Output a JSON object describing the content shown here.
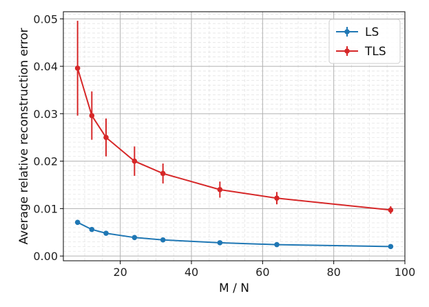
{
  "chart_data": {
    "type": "line",
    "title": "",
    "xlabel": "M / N",
    "ylabel": "Average relative reconstruction error",
    "xlim": [
      4,
      100
    ],
    "ylim": [
      -0.001,
      0.0515
    ],
    "x_ticks": [
      20,
      40,
      60,
      80,
      100
    ],
    "x_tick_labels": [
      "20",
      "40",
      "60",
      "80",
      "100"
    ],
    "y_ticks": [
      0.0,
      0.01,
      0.02,
      0.03,
      0.04,
      0.05
    ],
    "y_tick_labels": [
      "0.00",
      "0.01",
      "0.02",
      "0.03",
      "0.04",
      "0.05"
    ],
    "grid": true,
    "minor_grid": true,
    "legend_position": "top-right",
    "x": [
      8,
      12,
      16,
      24,
      32,
      48,
      64,
      96
    ],
    "series": [
      {
        "name": "LS",
        "color": "#1f77b4",
        "values": [
          0.0071,
          0.0056,
          0.0048,
          0.0039,
          0.0034,
          0.0028,
          0.0024,
          0.002
        ],
        "errors": [
          0.0003,
          0.0003,
          0.0002,
          0.0002,
          0.0002,
          0.0002,
          0.0001,
          0.0001
        ]
      },
      {
        "name": "TLS",
        "color": "#d62728",
        "values": [
          0.0396,
          0.0296,
          0.025,
          0.02,
          0.0174,
          0.014,
          0.0122,
          0.0097
        ],
        "errors": [
          0.01,
          0.0051,
          0.004,
          0.0031,
          0.0021,
          0.0017,
          0.0013,
          0.0008
        ]
      }
    ]
  }
}
